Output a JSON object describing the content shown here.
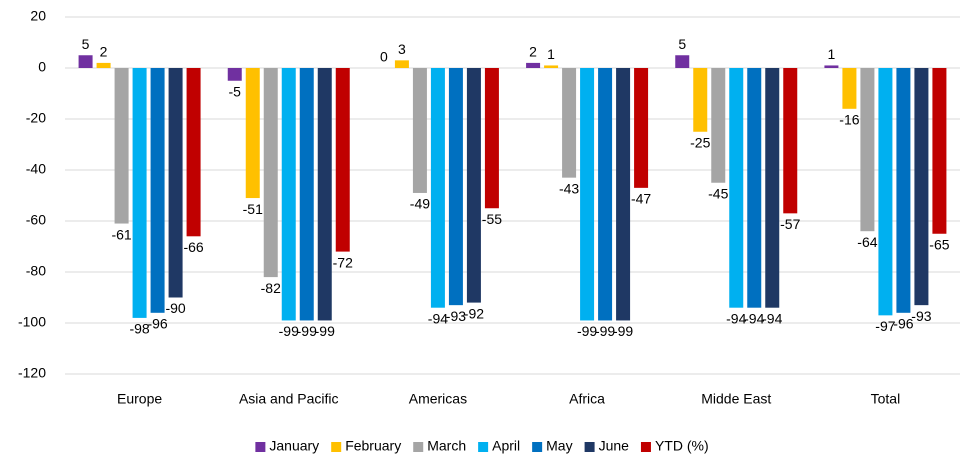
{
  "chart_data": {
    "type": "bar",
    "categories": [
      "Europe",
      "Asia and Pacific",
      "Americas",
      "Africa",
      "Midde East",
      "Total"
    ],
    "series": [
      {
        "name": "January",
        "color": "#7030a0",
        "values": [
          5,
          -5,
          0,
          2,
          5,
          1
        ]
      },
      {
        "name": "February",
        "color": "#ffc000",
        "values": [
          2,
          -51,
          3,
          1,
          -25,
          -16
        ]
      },
      {
        "name": "March",
        "color": "#a5a5a5",
        "values": [
          -61,
          -82,
          -49,
          -43,
          -45,
          -64
        ]
      },
      {
        "name": "April",
        "color": "#00b0f0",
        "values": [
          -98,
          -99,
          -94,
          -99,
          -94,
          -97
        ]
      },
      {
        "name": "May",
        "color": "#0070c0",
        "values": [
          -96,
          -99,
          -93,
          -99,
          -94,
          -96
        ]
      },
      {
        "name": "June",
        "color": "#1f3864",
        "values": [
          -90,
          -99,
          -92,
          -99,
          -94,
          -93
        ]
      },
      {
        "name": "YTD (%)",
        "color": "#c00000",
        "values": [
          -66,
          -72,
          -55,
          -47,
          -57,
          -65
        ]
      }
    ],
    "ylim": [
      -120,
      20
    ],
    "yticks": [
      -120,
      -100,
      -80,
      -60,
      -40,
      -20,
      0,
      20
    ],
    "grid": true,
    "legend": "bottom"
  }
}
